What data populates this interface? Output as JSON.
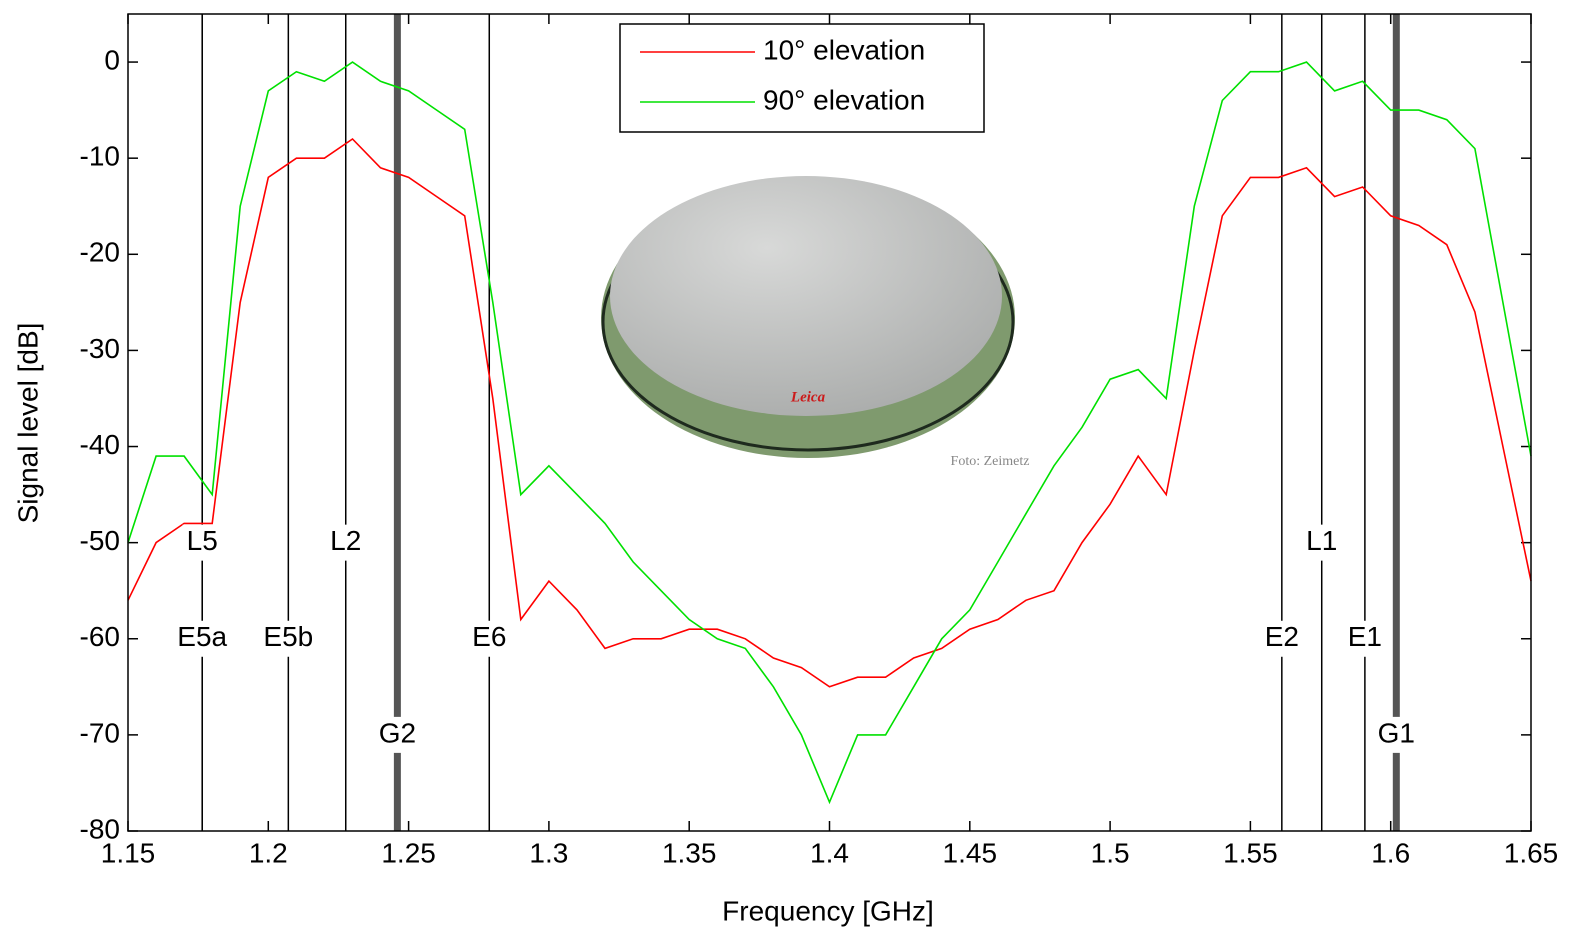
{
  "chart_data": {
    "type": "line",
    "xlabel": "Frequency [GHz]",
    "ylabel": "Signal level [dB]",
    "xlim": [
      1.15,
      1.65
    ],
    "ylim": [
      -80,
      5
    ],
    "xticks": [
      1.15,
      1.2,
      1.25,
      1.3,
      1.35,
      1.4,
      1.45,
      1.5,
      1.55,
      1.6,
      1.65
    ],
    "yticks": [
      0,
      -10,
      -20,
      -30,
      -40,
      -50,
      -60,
      -70,
      -80
    ],
    "legend": "top-center",
    "x": [
      1.15,
      1.16,
      1.17,
      1.18,
      1.19,
      1.2,
      1.21,
      1.22,
      1.23,
      1.24,
      1.25,
      1.26,
      1.27,
      1.28,
      1.29,
      1.3,
      1.31,
      1.32,
      1.33,
      1.34,
      1.35,
      1.36,
      1.37,
      1.38,
      1.39,
      1.4,
      1.41,
      1.42,
      1.43,
      1.44,
      1.45,
      1.46,
      1.47,
      1.48,
      1.49,
      1.5,
      1.51,
      1.52,
      1.53,
      1.54,
      1.55,
      1.56,
      1.57,
      1.58,
      1.59,
      1.6,
      1.61,
      1.62,
      1.63,
      1.64,
      1.65
    ],
    "series": [
      {
        "name": "10° elevation",
        "color": "#ff0000",
        "values": [
          -56,
          -50,
          -48,
          -48,
          -25,
          -12,
          -10,
          -10,
          -8,
          -11,
          -12,
          -14,
          -16,
          -35,
          -58,
          -54,
          -57,
          -61,
          -60,
          -60,
          -59,
          -59,
          -60,
          -62,
          -63,
          -65,
          -64,
          -64,
          -62,
          -61,
          -59,
          -58,
          -56,
          -55,
          -50,
          -46,
          -41,
          -45,
          -30,
          -16,
          -12,
          -12,
          -11,
          -14,
          -13,
          -16,
          -17,
          -19,
          -26,
          -40,
          -54
        ]
      },
      {
        "name": "90° elevation",
        "color": "#00e000",
        "values": [
          -50,
          -41,
          -41,
          -45,
          -15,
          -3,
          -1,
          -2,
          0,
          -2,
          -3,
          -5,
          -7,
          -25,
          -45,
          -42,
          -45,
          -48,
          -52,
          -55,
          -58,
          -60,
          -61,
          -65,
          -70,
          -77,
          -70,
          -70,
          -65,
          -60,
          -57,
          -52,
          -47,
          -42,
          -38,
          -33,
          -32,
          -35,
          -15,
          -4,
          -1,
          -1,
          0,
          -3,
          -2,
          -5,
          -5,
          -6,
          -9,
          -25,
          -41
        ]
      }
    ],
    "gps_bands": [
      {
        "label": "L5",
        "freq": 1.17645
      },
      {
        "label": "L2",
        "freq": 1.2276
      },
      {
        "label": "L1",
        "freq": 1.57542
      }
    ],
    "galileo_bands": [
      {
        "label": "E5a",
        "freq": 1.17645
      },
      {
        "label": "E5b",
        "freq": 1.20714
      },
      {
        "label": "E6",
        "freq": 1.27875
      },
      {
        "label": "E2",
        "freq": 1.5612
      },
      {
        "label": "E1",
        "freq": 1.5908
      }
    ],
    "glonass_bands": [
      {
        "label": "G2",
        "freq": 1.246
      },
      {
        "label": "G1",
        "freq": 1.602
      }
    ],
    "photo_brand": "Leica",
    "photo_credit": "Foto: Zeimetz"
  }
}
